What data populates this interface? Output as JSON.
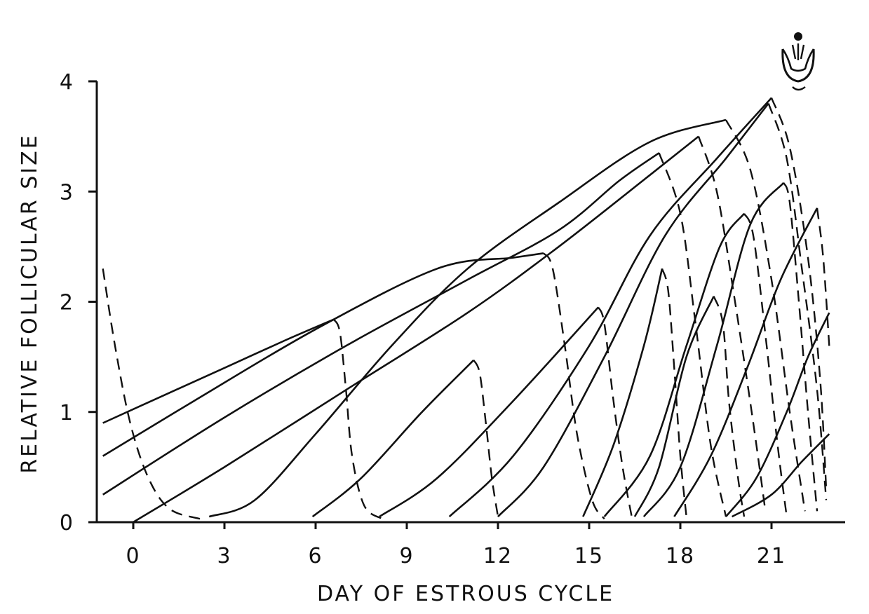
{
  "chart_data": {
    "type": "line",
    "title": "",
    "xlabel": "DAY OF ESTROUS CYCLE",
    "ylabel": "RELATIVE FOLLICULAR SIZE",
    "xlim": [
      -1,
      22.5
    ],
    "ylim": [
      0,
      4
    ],
    "xticks": [
      "0",
      "3",
      "6",
      "9",
      "12",
      "15",
      "18",
      "21"
    ],
    "xtick_values": [
      0,
      3,
      6,
      9,
      12,
      15,
      18,
      21
    ],
    "yticks": [
      "0",
      "1",
      "2",
      "3",
      "4"
    ],
    "ytick_values": [
      0,
      1,
      2,
      3,
      4
    ],
    "grid": false,
    "legend": "none",
    "annotation": "ovulation-icon",
    "series": [
      {
        "growth": [
          [
            -1.0,
            0.9
          ],
          [
            1,
            1.15
          ],
          [
            3,
            1.4
          ],
          [
            5,
            1.65
          ],
          [
            6.6,
            1.84
          ]
        ],
        "regression": [
          [
            6.6,
            1.84
          ],
          [
            6.8,
            1.72
          ],
          [
            7.0,
            1.2
          ],
          [
            7.2,
            0.6
          ],
          [
            7.6,
            0.15
          ],
          [
            8.2,
            0.03
          ]
        ]
      },
      {
        "growth": [
          [
            -1.0,
            0.6
          ],
          [
            2,
            1.1
          ],
          [
            6,
            1.75
          ],
          [
            10,
            2.3
          ],
          [
            12.5,
            2.4
          ],
          [
            13.5,
            2.44
          ]
        ],
        "regression": [
          [
            13.5,
            2.44
          ],
          [
            13.8,
            2.3
          ],
          [
            14.2,
            1.6
          ],
          [
            14.6,
            0.8
          ],
          [
            15.1,
            0.2
          ],
          [
            15.5,
            0.03
          ]
        ]
      },
      {
        "growth": [
          [
            -1.0,
            0.25
          ],
          [
            3,
            0.95
          ],
          [
            7,
            1.6
          ],
          [
            11,
            2.2
          ],
          [
            14,
            2.65
          ],
          [
            16,
            3.1
          ],
          [
            17.3,
            3.35
          ]
        ],
        "regression": [
          [
            17.3,
            3.35
          ],
          [
            18.0,
            2.8
          ],
          [
            18.5,
            1.8
          ],
          [
            19.0,
            0.7
          ],
          [
            19.5,
            0.05
          ]
        ]
      },
      {
        "growth": [
          [
            0.0,
            0.0
          ],
          [
            3,
            0.5
          ],
          [
            7,
            1.2
          ],
          [
            11,
            1.9
          ],
          [
            14,
            2.5
          ],
          [
            17,
            3.15
          ],
          [
            18.6,
            3.5
          ]
        ],
        "regression": [
          [
            18.6,
            3.5
          ],
          [
            19.2,
            3.0
          ],
          [
            19.8,
            2.0
          ],
          [
            20.4,
            0.9
          ],
          [
            20.8,
            0.1
          ]
        ]
      },
      {
        "growth": [
          [
            2.5,
            0.05
          ],
          [
            4.0,
            0.2
          ],
          [
            6.0,
            0.8
          ],
          [
            8.5,
            1.6
          ],
          [
            11,
            2.3
          ],
          [
            14,
            2.9
          ],
          [
            17,
            3.45
          ],
          [
            19.5,
            3.65
          ]
        ],
        "regression": [
          [
            19.5,
            3.65
          ],
          [
            20.3,
            3.2
          ],
          [
            21.0,
            2.2
          ],
          [
            21.6,
            1.0
          ],
          [
            22.1,
            0.1
          ]
        ]
      },
      {
        "growth": [
          [
            5.9,
            0.05
          ],
          [
            7.5,
            0.4
          ],
          [
            9.5,
            1.0
          ],
          [
            11.2,
            1.47
          ]
        ],
        "regression": [
          [
            11.2,
            1.47
          ],
          [
            11.4,
            1.35
          ],
          [
            11.6,
            0.9
          ],
          [
            11.8,
            0.4
          ],
          [
            12.0,
            0.05
          ]
        ]
      },
      {
        "growth": [
          [
            8.1,
            0.05
          ],
          [
            10.0,
            0.4
          ],
          [
            12.5,
            1.1
          ],
          [
            15.3,
            1.95
          ]
        ],
        "regression": [
          [
            15.3,
            1.95
          ],
          [
            15.5,
            1.8
          ],
          [
            15.8,
            1.1
          ],
          [
            16.1,
            0.5
          ],
          [
            16.4,
            0.05
          ]
        ]
      },
      {
        "growth": [
          [
            10.4,
            0.05
          ],
          [
            12.5,
            0.6
          ],
          [
            15.0,
            1.6
          ],
          [
            17.0,
            2.6
          ],
          [
            19.2,
            3.3
          ],
          [
            21.0,
            3.85
          ]
        ],
        "regression": [
          [
            21.0,
            3.85
          ],
          [
            21.6,
            3.4
          ],
          [
            22.2,
            2.4
          ],
          [
            22.6,
            1.3
          ],
          [
            22.8,
            0.3
          ]
        ]
      },
      {
        "growth": [
          [
            12.0,
            0.05
          ],
          [
            13.5,
            0.5
          ],
          [
            15.5,
            1.5
          ],
          [
            17.5,
            2.6
          ],
          [
            19.5,
            3.3
          ],
          [
            20.9,
            3.8
          ]
        ],
        "regression": [
          [
            20.9,
            3.8
          ],
          [
            21.5,
            3.3
          ],
          [
            22.0,
            2.3
          ],
          [
            22.5,
            1.2
          ],
          [
            22.8,
            0.2
          ]
        ]
      },
      {
        "growth": [
          [
            14.8,
            0.05
          ],
          [
            15.8,
            0.7
          ],
          [
            16.8,
            1.6
          ],
          [
            17.4,
            2.3
          ]
        ],
        "regression": [
          [
            17.4,
            2.3
          ],
          [
            17.6,
            2.1
          ],
          [
            17.8,
            1.4
          ],
          [
            18.0,
            0.6
          ],
          [
            18.2,
            0.05
          ]
        ]
      },
      {
        "growth": [
          [
            16.5,
            0.05
          ],
          [
            17.3,
            0.5
          ],
          [
            18.2,
            1.5
          ],
          [
            19.1,
            2.05
          ]
        ],
        "regression": [
          [
            19.1,
            2.05
          ],
          [
            19.4,
            1.8
          ],
          [
            19.6,
            1.1
          ],
          [
            19.9,
            0.4
          ],
          [
            20.1,
            0.05
          ]
        ]
      },
      {
        "growth": [
          [
            15.5,
            0.05
          ],
          [
            17.0,
            0.6
          ],
          [
            18.2,
            1.6
          ],
          [
            19.3,
            2.5
          ],
          [
            20.1,
            2.8
          ]
        ],
        "regression": [
          [
            20.1,
            2.8
          ],
          [
            20.4,
            2.6
          ],
          [
            20.8,
            1.7
          ],
          [
            21.2,
            0.7
          ],
          [
            21.5,
            0.05
          ]
        ]
      },
      {
        "growth": [
          [
            16.8,
            0.05
          ],
          [
            18.0,
            0.5
          ],
          [
            19.2,
            1.6
          ],
          [
            20.3,
            2.7
          ],
          [
            21.4,
            3.08
          ]
        ],
        "regression": [
          [
            21.4,
            3.08
          ],
          [
            21.6,
            2.9
          ],
          [
            21.9,
            2.0
          ],
          [
            22.2,
            1.0
          ],
          [
            22.5,
            0.1
          ]
        ]
      },
      {
        "growth": [
          [
            17.8,
            0.05
          ],
          [
            19.0,
            0.6
          ],
          [
            20.2,
            1.4
          ],
          [
            21.3,
            2.2
          ],
          [
            22.5,
            2.85
          ]
        ],
        "regression": [
          [
            22.5,
            2.85
          ],
          [
            22.7,
            2.4
          ],
          [
            22.9,
            1.6
          ]
        ]
      },
      {
        "growth": [
          [
            19.5,
            0.05
          ],
          [
            20.5,
            0.4
          ],
          [
            21.5,
            1.0
          ],
          [
            22.2,
            1.5
          ],
          [
            22.9,
            1.9
          ]
        ],
        "regression": []
      },
      {
        "growth": [
          [
            19.7,
            0.05
          ],
          [
            21.0,
            0.25
          ],
          [
            22.0,
            0.55
          ],
          [
            22.9,
            0.8
          ]
        ],
        "regression": []
      }
    ]
  }
}
